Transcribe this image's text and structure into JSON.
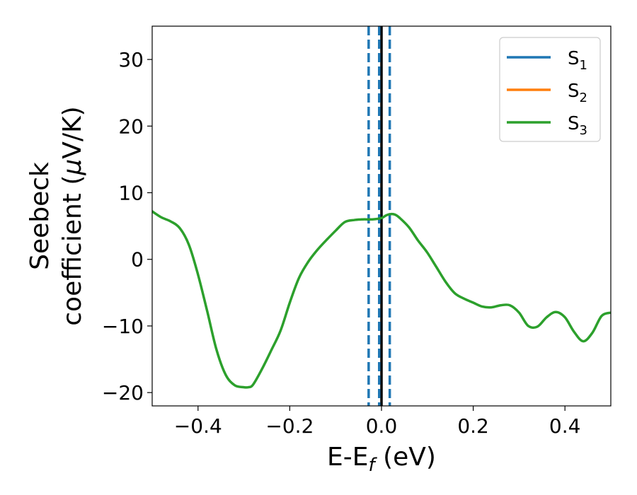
{
  "chart_data": {
    "type": "line",
    "title": "",
    "xlabel": {
      "base": "E-E",
      "sub": "f",
      "suffix": " (eV)"
    },
    "ylabel": {
      "line1": "Seebeck",
      "line2_prefix": "coefficient  (",
      "mu": "μ",
      "line2_suffix": "V/K)"
    },
    "xlim": [
      -0.5,
      0.5
    ],
    "ylim": [
      -22,
      35
    ],
    "xticks": [
      -0.4,
      -0.2,
      0.0,
      0.2,
      0.4
    ],
    "xtick_labels": [
      "−0.4",
      "−0.2",
      "0.0",
      "0.2",
      "0.4"
    ],
    "yticks": [
      -20,
      -10,
      0,
      10,
      20,
      30
    ],
    "ytick_labels": [
      "−20",
      "−10",
      "0",
      "10",
      "20",
      "30"
    ],
    "grid": false,
    "legend_position": "top-right",
    "series": [
      {
        "name": "S",
        "sub": "1",
        "color": "#1f77b4",
        "x": [],
        "y": []
      },
      {
        "name": "S",
        "sub": "2",
        "color": "#ff7f0e",
        "x": [],
        "y": []
      },
      {
        "name": "S",
        "sub": "3",
        "color": "#2ca02c",
        "x": [
          -0.5,
          -0.48,
          -0.46,
          -0.44,
          -0.42,
          -0.4,
          -0.38,
          -0.36,
          -0.34,
          -0.32,
          -0.3,
          -0.29,
          -0.28,
          -0.26,
          -0.24,
          -0.22,
          -0.2,
          -0.18,
          -0.16,
          -0.14,
          -0.12,
          -0.1,
          -0.08,
          -0.06,
          -0.04,
          -0.02,
          0.0,
          0.01,
          0.02,
          0.03,
          0.04,
          0.06,
          0.08,
          0.1,
          0.12,
          0.14,
          0.16,
          0.18,
          0.2,
          0.22,
          0.24,
          0.26,
          0.28,
          0.3,
          0.32,
          0.34,
          0.36,
          0.38,
          0.4,
          0.42,
          0.44,
          0.46,
          0.48,
          0.5
        ],
        "y": [
          7.2,
          6.3,
          5.7,
          4.7,
          2.2,
          -2.3,
          -7.8,
          -13.5,
          -17.3,
          -18.9,
          -19.2,
          -19.2,
          -18.8,
          -16.4,
          -13.6,
          -10.7,
          -6.5,
          -2.8,
          -0.4,
          1.4,
          2.9,
          4.3,
          5.6,
          5.9,
          6.0,
          6.0,
          6.2,
          6.6,
          6.8,
          6.7,
          6.2,
          4.8,
          2.8,
          1.0,
          -1.2,
          -3.4,
          -5.1,
          -5.9,
          -6.5,
          -7.1,
          -7.2,
          -6.9,
          -6.9,
          -8.0,
          -10.0,
          -10.1,
          -8.7,
          -7.9,
          -8.7,
          -10.9,
          -12.3,
          -11.0,
          -8.5,
          -8.0
        ]
      }
    ],
    "vlines": [
      {
        "x": -0.028,
        "style": "dashed",
        "color": "#1f77b4"
      },
      {
        "x": 0.0,
        "style": "solid",
        "color": "#000000"
      },
      {
        "x": -0.005,
        "style": "dashed",
        "color": "#1f77b4"
      },
      {
        "x": 0.018,
        "style": "dashed",
        "color": "#1f77b4"
      }
    ]
  }
}
